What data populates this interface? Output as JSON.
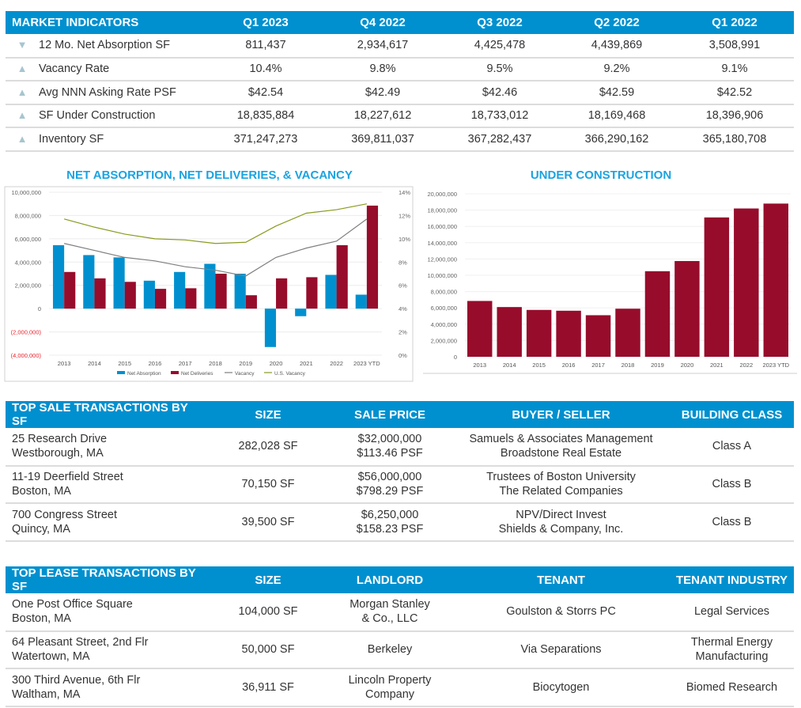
{
  "market_indicators": {
    "header": [
      "MARKET INDICATORS",
      "Q1 2023",
      "Q4 2022",
      "Q3 2022",
      "Q2 2022",
      "Q1 2022"
    ],
    "rows": [
      {
        "trend": "down",
        "trend_icon": "▼",
        "label": "12 Mo. Net Absorption SF",
        "values": [
          "811,437",
          "2,934,617",
          "4,425,478",
          "4,439,869",
          "3,508,991"
        ]
      },
      {
        "trend": "up",
        "trend_icon": "▲",
        "label": "Vacancy Rate",
        "values": [
          "10.4%",
          "9.8%",
          "9.5%",
          "9.2%",
          "9.1%"
        ]
      },
      {
        "trend": "up",
        "trend_icon": "▲",
        "label": "Avg NNN Asking Rate PSF",
        "values": [
          "$42.54",
          "$42.49",
          "$42.46",
          "$42.59",
          "$42.52"
        ]
      },
      {
        "trend": "up",
        "trend_icon": "▲",
        "label": "SF Under Construction",
        "values": [
          "18,835,884",
          "18,227,612",
          "18,733,012",
          "18,169,468",
          "18,396,906"
        ]
      },
      {
        "trend": "up",
        "trend_icon": "▲",
        "label": "Inventory SF",
        "values": [
          "371,247,273",
          "369,811,037",
          "367,282,437",
          "366,290,162",
          "365,180,708"
        ]
      }
    ]
  },
  "colors": {
    "header_blue": "#0090cf",
    "title_blue": "#1ba3e0",
    "net_absorption": "#0090cf",
    "net_deliveries": "#970c2b",
    "vacancy": "#7f7f7f",
    "us_vacancy": "#8a9a1e",
    "negative_tick": "#e8262f",
    "trend_arrow": "#a7c5cf"
  },
  "chart_data": [
    {
      "type": "bar",
      "title": "NET ABSORPTION, NET DELIVERIES, & VACANCY",
      "categories": [
        "2013",
        "2014",
        "2015",
        "2016",
        "2017",
        "2018",
        "2019",
        "2020",
        "2021",
        "2022",
        "2023 YTD"
      ],
      "series": [
        {
          "name": "Net Absorption",
          "kind": "bar",
          "axis": "left",
          "values": [
            5450000,
            4600000,
            4400000,
            2400000,
            3150000,
            3850000,
            3000000,
            -3300000,
            -650000,
            2900000,
            1200000
          ]
        },
        {
          "name": "Net Deliveries",
          "kind": "bar",
          "axis": "left",
          "values": [
            3150000,
            2600000,
            2300000,
            1700000,
            1750000,
            3000000,
            1150000,
            2600000,
            2700000,
            5450000,
            8850000
          ]
        },
        {
          "name": "Vacancy",
          "kind": "line",
          "axis": "right",
          "values": [
            9.6,
            9.0,
            8.4,
            8.1,
            7.6,
            7.3,
            6.8,
            8.4,
            9.2,
            9.8,
            11.7
          ]
        },
        {
          "name": "U.S. Vacancy",
          "kind": "line",
          "axis": "right",
          "values": [
            11.7,
            11.0,
            10.4,
            10.0,
            9.9,
            9.6,
            9.7,
            11.1,
            12.2,
            12.5,
            13.0
          ]
        }
      ],
      "y_left": {
        "ylim": [
          -4000000,
          10000000
        ],
        "ticks": [
          "10,000,000",
          "8,000,000",
          "6,000,000",
          "4,000,000",
          "2,000,000",
          "0",
          "(2,000,000)",
          "(4,000,000)"
        ]
      },
      "y_right": {
        "ylim": [
          0,
          14
        ],
        "ticks": [
          "14%",
          "12%",
          "10%",
          "8%",
          "6%",
          "4%",
          "2%",
          "0%"
        ]
      },
      "legend": {
        "position": "bottom",
        "entries": [
          "Net Absorption",
          "Net Deliveries",
          "Vacancy",
          "U.S. Vacancy"
        ]
      },
      "grid": true
    },
    {
      "type": "bar",
      "title": "UNDER CONSTRUCTION",
      "categories": [
        "2013",
        "2014",
        "2015",
        "2016",
        "2017",
        "2018",
        "2019",
        "2020",
        "2021",
        "2022",
        "2023 YTD"
      ],
      "values": [
        6850000,
        6100000,
        5750000,
        5650000,
        5100000,
        5900000,
        10500000,
        11750000,
        17100000,
        18200000,
        18800000
      ],
      "ylim": [
        0,
        20000000
      ],
      "ticks": [
        "20,000,000",
        "18,000,000",
        "16,000,000",
        "14,000,000",
        "12,000,000",
        "10,000,000",
        "8,000,000",
        "6,000,000",
        "4,000,000",
        "2,000,000",
        "0"
      ],
      "grid": true
    }
  ],
  "sales": {
    "header": [
      "TOP SALE TRANSACTIONS BY SF",
      "SIZE",
      "SALE PRICE",
      "BUYER / SELLER",
      "BUILDING CLASS"
    ],
    "rows": [
      {
        "address": "25 Research Drive",
        "city": "Westborough, MA",
        "size": "282,028 SF",
        "price": "$32,000,000",
        "psf": "$113.46 PSF",
        "buyer": "Samuels & Associates Management",
        "seller": "Broadstone Real Estate",
        "class": "Class A"
      },
      {
        "address": "11-19 Deerfield Street",
        "city": "Boston, MA",
        "size": "70,150 SF",
        "price": "$56,000,000",
        "psf": "$798.29 PSF",
        "buyer": "Trustees of Boston University",
        "seller": "The Related Companies",
        "class": "Class B"
      },
      {
        "address": "700 Congress Street",
        "city": "Quincy, MA",
        "size": "39,500 SF",
        "price": "$6,250,000",
        "psf": "$158.23 PSF",
        "buyer": "NPV/Direct Invest",
        "seller": "Shields & Company, Inc.",
        "class": "Class B"
      }
    ]
  },
  "leases": {
    "header": [
      "TOP LEASE TRANSACTIONS BY SF",
      "SIZE",
      "LANDLORD",
      "TENANT",
      "TENANT INDUSTRY"
    ],
    "rows": [
      {
        "address": "One Post Office Square",
        "city": "Boston, MA",
        "size": "104,000 SF",
        "landlord1": "Morgan Stanley",
        "landlord2": "& Co., LLC",
        "tenant": "Goulston & Storrs PC",
        "industry1": "Legal Services",
        "industry2": ""
      },
      {
        "address": "64 Pleasant Street, 2nd Flr",
        "city": "Watertown, MA",
        "size": "50,000 SF",
        "landlord1": "Berkeley",
        "landlord2": "",
        "tenant": "Via Separations",
        "industry1": "Thermal Energy",
        "industry2": "Manufacturing"
      },
      {
        "address": "300 Third Avenue, 6th Flr",
        "city": "Waltham, MA",
        "size": "36,911 SF",
        "landlord1": "Lincoln Property",
        "landlord2": "Company",
        "tenant": "Biocytogen",
        "industry1": "Biomed Research",
        "industry2": ""
      }
    ]
  }
}
